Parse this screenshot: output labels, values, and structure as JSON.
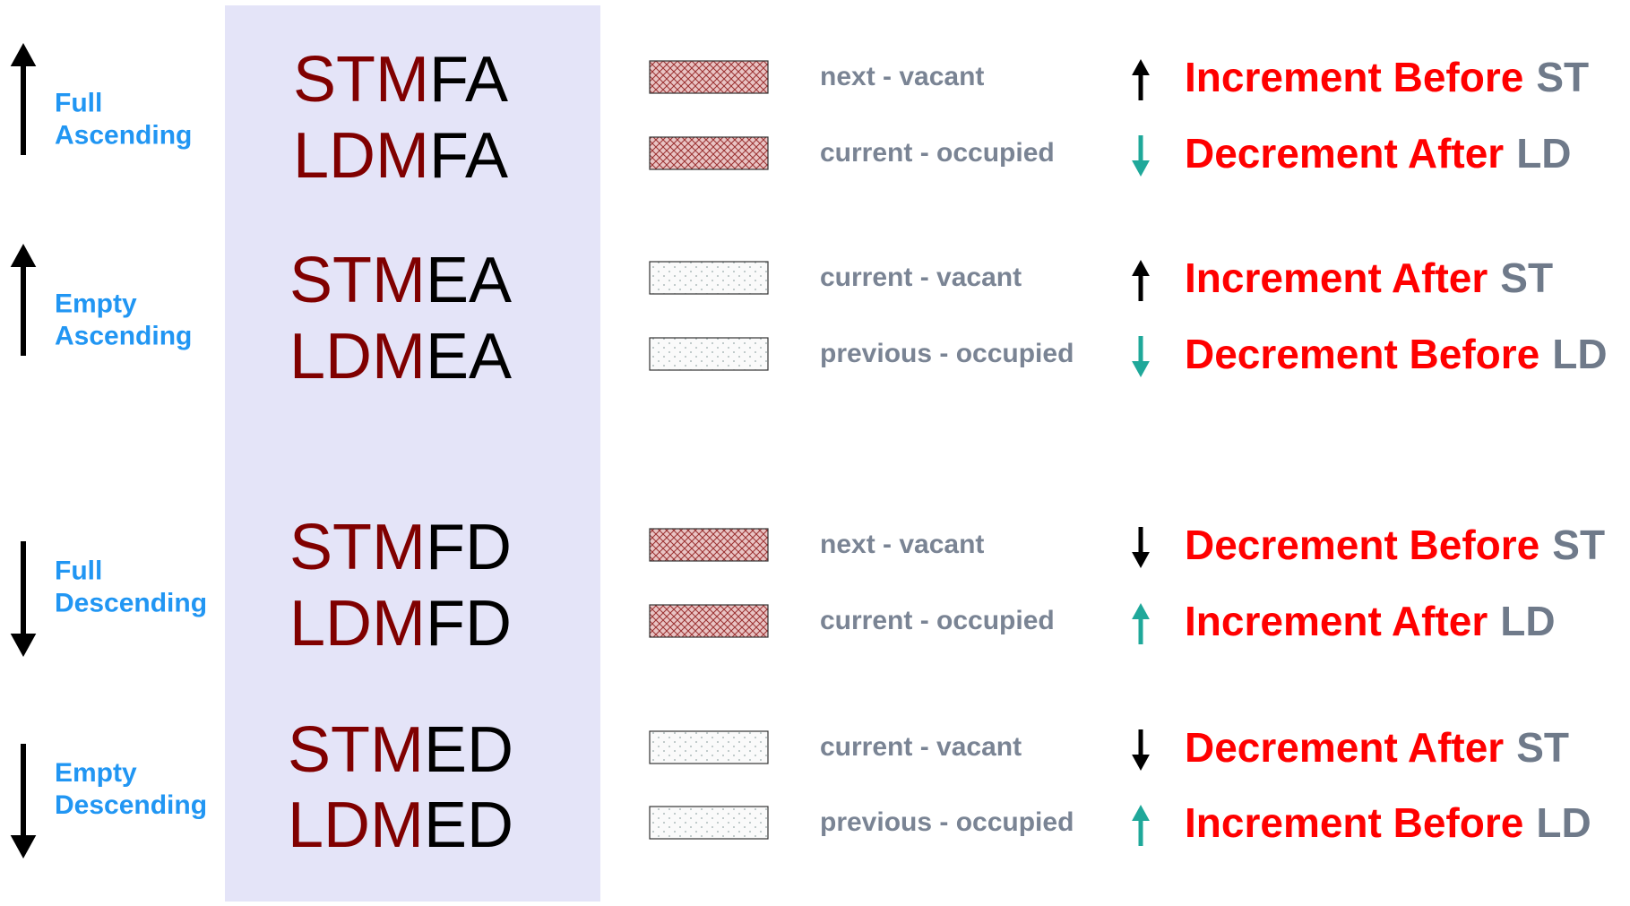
{
  "groups": [
    {
      "label": [
        "Full",
        "Ascending"
      ],
      "rows": [
        {
          "prefix": "STM",
          "suffix": "FA",
          "desc": "next - vacant",
          "mode": "Increment Before",
          "op": "ST"
        },
        {
          "prefix": "LDM",
          "suffix": "FA",
          "desc": "current - occupied",
          "mode": "Decrement After",
          "op": "LD"
        }
      ]
    },
    {
      "label": [
        "Empty",
        "Ascending"
      ],
      "rows": [
        {
          "prefix": "STM",
          "suffix": "EA",
          "desc": "current - vacant",
          "mode": "Increment After",
          "op": "ST"
        },
        {
          "prefix": "LDM",
          "suffix": "EA",
          "desc": "previous - occupied",
          "mode": "Decrement Before",
          "op": "LD"
        }
      ]
    },
    {
      "label": [
        "Full",
        "Descending"
      ],
      "rows": [
        {
          "prefix": "STM",
          "suffix": "FD",
          "desc": "next - vacant",
          "mode": "Decrement Before",
          "op": "ST"
        },
        {
          "prefix": "LDM",
          "suffix": "FD",
          "desc": "current - occupied",
          "mode": "Increment After",
          "op": "LD"
        }
      ]
    },
    {
      "label": [
        "Empty",
        "Descending"
      ],
      "rows": [
        {
          "prefix": "STM",
          "suffix": "ED",
          "desc": "current - vacant",
          "mode": "Decrement After",
          "op": "ST"
        },
        {
          "prefix": "LDM",
          "suffix": "ED",
          "desc": "previous - occupied",
          "mode": "Increment Before",
          "op": "LD"
        }
      ]
    }
  ]
}
